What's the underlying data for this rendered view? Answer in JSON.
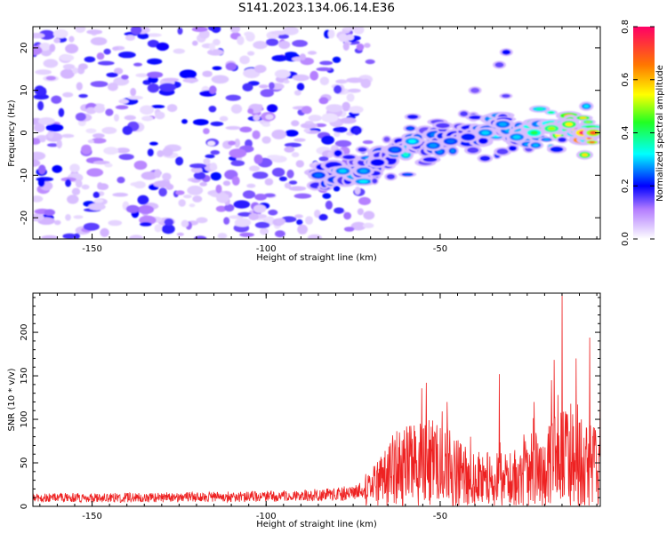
{
  "title": "S141.2023.134.06.14.E36",
  "chart_data": [
    {
      "type": "heatmap",
      "xlabel": "Height of straight line (km)",
      "ylabel": "Frequency (Hz)",
      "xlim": [
        -167,
        -4
      ],
      "ylim": [
        -25,
        25
      ],
      "xticks": [
        -150,
        -100,
        -50
      ],
      "yticks": [
        -20,
        -10,
        0,
        10,
        20
      ],
      "grid": false,
      "colorbar": {
        "label": "Normalized spectral amplitude",
        "range": [
          0.0,
          0.8
        ],
        "ticks": [
          "0.0",
          "0.2",
          "0.4",
          "0.6",
          "0.8"
        ]
      },
      "noise_region": {
        "x": [
          -167,
          -80
        ],
        "y": [
          -25,
          25
        ],
        "level": 0.1
      },
      "ridge": [
        {
          "x": -85,
          "y": -10,
          "level": 0.25
        },
        {
          "x": -78,
          "y": -9,
          "level": 0.3
        },
        {
          "x": -72,
          "y": -9,
          "level": 0.28
        },
        {
          "x": -68,
          "y": -7,
          "level": 0.2
        },
        {
          "x": -63,
          "y": -4,
          "level": 0.25
        },
        {
          "x": -58,
          "y": -2,
          "level": 0.32
        },
        {
          "x": -52,
          "y": -3,
          "level": 0.27
        },
        {
          "x": -47,
          "y": -2,
          "level": 0.25
        },
        {
          "x": -42,
          "y": -1,
          "level": 0.22
        },
        {
          "x": -37,
          "y": 0,
          "level": 0.3
        },
        {
          "x": -32,
          "y": 2,
          "level": 0.28
        },
        {
          "x": -28,
          "y": -1,
          "level": 0.3
        },
        {
          "x": -23,
          "y": 0,
          "level": 0.42
        },
        {
          "x": -18,
          "y": 1,
          "level": 0.5
        },
        {
          "x": -13,
          "y": 2,
          "level": 0.55
        },
        {
          "x": -9,
          "y": 0,
          "level": 0.8
        },
        {
          "x": -6,
          "y": 0,
          "level": 0.7
        }
      ],
      "upper_branch": [
        {
          "x": -40,
          "y": 10,
          "level": 0.1
        },
        {
          "x": -33,
          "y": 16,
          "level": 0.12
        },
        {
          "x": -31,
          "y": 19,
          "level": 0.2
        }
      ]
    },
    {
      "type": "line",
      "xlabel": "Height of straight line (km)",
      "ylabel": "SNR (10 * v/v)",
      "xlim": [
        -167,
        -4
      ],
      "ylim": [
        0,
        245
      ],
      "xticks": [
        -150,
        -100,
        -50
      ],
      "yticks": [
        0,
        50,
        100,
        150,
        200
      ],
      "grid": false,
      "series": [
        {
          "color": "#ee2222",
          "baseline_x": [
            -167,
            -140,
            -110,
            -90,
            -80,
            -72,
            -68,
            -65,
            -60,
            -55,
            -50,
            -45,
            -40,
            -35,
            -30,
            -25,
            -20,
            -15,
            -12,
            -10,
            -8,
            -6,
            -4
          ],
          "baseline_y": [
            10,
            10,
            11,
            12,
            14,
            18,
            25,
            40,
            45,
            50,
            50,
            40,
            32,
            30,
            30,
            38,
            45,
            55,
            60,
            60,
            55,
            45,
            40
          ],
          "peaks": [
            {
              "x": -54,
              "y": 142
            },
            {
              "x": -48,
              "y": 120
            },
            {
              "x": -33,
              "y": 152
            },
            {
              "x": -23,
              "y": 120
            },
            {
              "x": -18,
              "y": 145
            },
            {
              "x": -15,
              "y": 248
            },
            {
              "x": -11,
              "y": 170
            },
            {
              "x": -7,
              "y": 194
            },
            {
              "x": -4,
              "y": 160
            }
          ]
        }
      ]
    }
  ]
}
